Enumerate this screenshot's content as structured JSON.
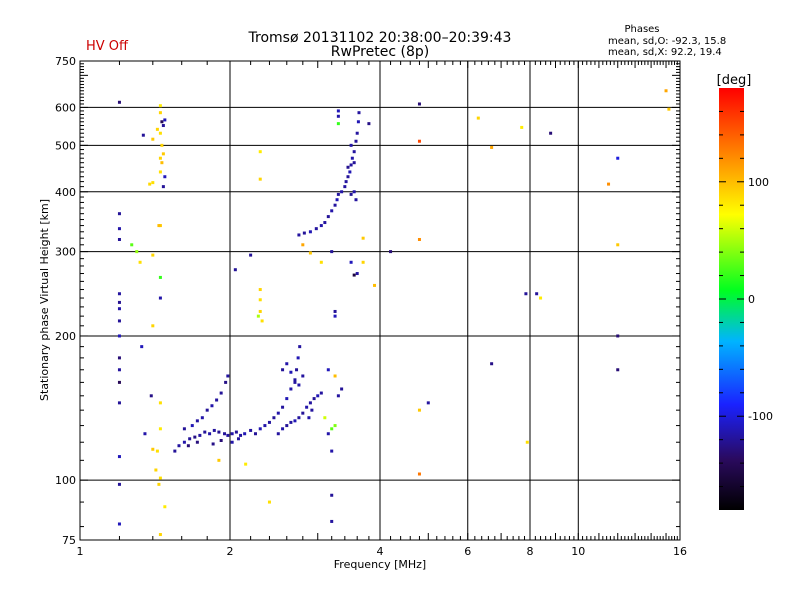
{
  "status": {
    "hv": "HV Off",
    "hv_color": "#cc0000"
  },
  "header": {
    "title_line1": "Tromsø 20131102 20:38:00–20:39:43",
    "title_line2": "RwPretec (8p)",
    "stats_title": "Phases",
    "stats_o": "mean, sd,O:  -92.3, 15.8",
    "stats_x": "mean, sd,X:  92.2, 19.4"
  },
  "colorbar": {
    "label": "[deg]",
    "ticks": [
      {
        "value": 100,
        "label": "100"
      },
      {
        "value": 0,
        "label": "0"
      },
      {
        "value": -100,
        "label": "-100"
      }
    ],
    "range": [
      -180,
      180
    ]
  },
  "chart_data": {
    "type": "scatter",
    "title": "Tromsø 20131102 20:38:00–20:39:43",
    "subtitle": "RwPretec (8p)",
    "xlabel": "Frequency [MHz]",
    "ylabel": "Stationary phase Virtual Height [km]",
    "xscale": "log",
    "yscale": "log",
    "xlim": [
      1,
      16
    ],
    "ylim": [
      75,
      750
    ],
    "grid": true,
    "xticks_major": [
      1,
      2,
      4,
      8,
      16
    ],
    "xtick_labels": [
      {
        "v": 1,
        "l": "1"
      },
      {
        "v": 2,
        "l": "2"
      },
      {
        "v": 4,
        "l": "4"
      },
      {
        "v": 6,
        "l": "6"
      },
      {
        "v": 8,
        "l": "8"
      },
      {
        "v": 10,
        "l": "10"
      },
      {
        "v": 16,
        "l": "16"
      }
    ],
    "xgrid": [
      2,
      4,
      6,
      8,
      10
    ],
    "ygrid": [
      100,
      200,
      300,
      400,
      500,
      600
    ],
    "ytick_labels": [
      75,
      100,
      200,
      300,
      400,
      500,
      600,
      750
    ],
    "color_scale": "phase in degrees (-180 to 180)",
    "points": [
      [
        1.2,
        615,
        -130
      ],
      [
        1.2,
        360,
        -120
      ],
      [
        1.2,
        335,
        -115
      ],
      [
        1.2,
        318,
        -120
      ],
      [
        1.2,
        245,
        -118
      ],
      [
        1.2,
        235,
        -122
      ],
      [
        1.2,
        228,
        -115
      ],
      [
        1.2,
        215,
        -120
      ],
      [
        1.2,
        200,
        -110
      ],
      [
        1.2,
        180,
        -130
      ],
      [
        1.2,
        170,
        -118
      ],
      [
        1.2,
        160,
        -140
      ],
      [
        1.2,
        145,
        -120
      ],
      [
        1.2,
        112,
        -110
      ],
      [
        1.2,
        98,
        -120
      ],
      [
        1.2,
        81,
        -110
      ],
      [
        1.34,
        525,
        -120
      ],
      [
        1.4,
        515,
        95
      ],
      [
        1.43,
        540,
        90
      ],
      [
        1.45,
        605,
        80
      ],
      [
        1.45,
        585,
        90
      ],
      [
        1.46,
        560,
        -140
      ],
      [
        1.47,
        550,
        -120
      ],
      [
        1.48,
        565,
        -110
      ],
      [
        1.45,
        530,
        85
      ],
      [
        1.46,
        500,
        90
      ],
      [
        1.47,
        480,
        95
      ],
      [
        1.46,
        460,
        100
      ],
      [
        1.45,
        440,
        85
      ],
      [
        1.48,
        430,
        -110
      ],
      [
        1.47,
        410,
        -120
      ],
      [
        1.45,
        470,
        90
      ],
      [
        1.4,
        418,
        85
      ],
      [
        1.38,
        415,
        88
      ],
      [
        1.45,
        340,
        95
      ],
      [
        1.44,
        340,
        100
      ],
      [
        1.4,
        295,
        90
      ],
      [
        1.32,
        285,
        85
      ],
      [
        1.3,
        300,
        45
      ],
      [
        1.27,
        310,
        30
      ],
      [
        1.45,
        265,
        20
      ],
      [
        1.45,
        240,
        -115
      ],
      [
        1.4,
        210,
        90
      ],
      [
        1.33,
        190,
        -110
      ],
      [
        1.39,
        150,
        -125
      ],
      [
        1.45,
        145,
        85
      ],
      [
        1.45,
        128,
        80
      ],
      [
        1.43,
        115,
        85
      ],
      [
        1.42,
        105,
        90
      ],
      [
        1.45,
        101,
        85
      ],
      [
        1.44,
        98,
        90
      ],
      [
        1.48,
        88,
        80
      ],
      [
        1.45,
        77,
        90
      ],
      [
        1.35,
        125,
        -115
      ],
      [
        1.4,
        116,
        95
      ],
      [
        1.55,
        115,
        -120
      ],
      [
        1.58,
        118,
        -118
      ],
      [
        1.62,
        120,
        -115
      ],
      [
        1.66,
        122,
        -120
      ],
      [
        1.7,
        123,
        -125
      ],
      [
        1.74,
        124,
        -118
      ],
      [
        1.78,
        126,
        -120
      ],
      [
        1.82,
        125,
        -115
      ],
      [
        1.86,
        127,
        -118
      ],
      [
        1.9,
        126,
        -122
      ],
      [
        1.95,
        125,
        -120
      ],
      [
        1.98,
        124,
        -118
      ],
      [
        2.02,
        125,
        -115
      ],
      [
        2.06,
        126,
        -120
      ],
      [
        2.1,
        124,
        -118
      ],
      [
        1.62,
        128,
        -120
      ],
      [
        1.68,
        130,
        -112
      ],
      [
        1.72,
        133,
        -118
      ],
      [
        1.76,
        135,
        -115
      ],
      [
        1.8,
        140,
        -120
      ],
      [
        1.84,
        143,
        -115
      ],
      [
        1.88,
        147,
        -118
      ],
      [
        1.92,
        152,
        -120
      ],
      [
        1.96,
        160,
        -125
      ],
      [
        1.98,
        165,
        -118
      ],
      [
        1.65,
        118,
        -130
      ],
      [
        1.72,
        120,
        -128
      ],
      [
        1.85,
        119,
        -125
      ],
      [
        1.92,
        121,
        -130
      ],
      [
        2.02,
        120,
        -115
      ],
      [
        2.08,
        122,
        -118
      ],
      [
        2.14,
        125,
        -112
      ],
      [
        2.2,
        127,
        -118
      ],
      [
        2.25,
        125,
        -120
      ],
      [
        2.3,
        128,
        -112
      ],
      [
        2.35,
        130,
        -115
      ],
      [
        2.4,
        132,
        -118
      ],
      [
        2.45,
        135,
        -120
      ],
      [
        2.5,
        138,
        -115
      ],
      [
        2.55,
        142,
        -118
      ],
      [
        2.6,
        148,
        -112
      ],
      [
        2.65,
        155,
        -115
      ],
      [
        2.7,
        162,
        -118
      ],
      [
        2.72,
        170,
        -120
      ],
      [
        2.74,
        180,
        -112
      ],
      [
        2.76,
        190,
        -118
      ],
      [
        2.6,
        175,
        -115
      ],
      [
        2.55,
        170,
        -120
      ],
      [
        2.65,
        168,
        -112
      ],
      [
        2.7,
        160,
        -118
      ],
      [
        2.75,
        158,
        -115
      ],
      [
        2.8,
        165,
        -118
      ],
      [
        2.5,
        125,
        -118
      ],
      [
        2.55,
        128,
        -115
      ],
      [
        2.6,
        130,
        -120
      ],
      [
        2.65,
        132,
        -118
      ],
      [
        2.7,
        133,
        -112
      ],
      [
        2.75,
        135,
        -118
      ],
      [
        2.8,
        138,
        -120
      ],
      [
        2.85,
        142,
        -115
      ],
      [
        2.9,
        145,
        -118
      ],
      [
        2.95,
        148,
        -120
      ],
      [
        3.0,
        150,
        -112
      ],
      [
        3.05,
        152,
        -118
      ],
      [
        2.88,
        135,
        -115
      ],
      [
        2.92,
        140,
        -118
      ],
      [
        3.15,
        125,
        -115
      ],
      [
        3.2,
        128,
        30
      ],
      [
        3.25,
        130,
        40
      ],
      [
        3.1,
        135,
        60
      ],
      [
        3.3,
        150,
        -118
      ],
      [
        3.35,
        155,
        -120
      ],
      [
        3.15,
        170,
        -110
      ],
      [
        3.25,
        165,
        100
      ],
      [
        3.2,
        115,
        -115
      ],
      [
        3.2,
        93,
        -120
      ],
      [
        3.2,
        82,
        -118
      ],
      [
        3.25,
        225,
        -120
      ],
      [
        3.25,
        220,
        -110
      ],
      [
        2.75,
        325,
        -118
      ],
      [
        2.82,
        328,
        -120
      ],
      [
        2.9,
        330,
        -112
      ],
      [
        2.98,
        335,
        -118
      ],
      [
        3.05,
        340,
        -115
      ],
      [
        3.1,
        345,
        -118
      ],
      [
        3.15,
        355,
        -120
      ],
      [
        3.2,
        365,
        -115
      ],
      [
        3.25,
        375,
        -118
      ],
      [
        3.28,
        385,
        -112
      ],
      [
        3.3,
        395,
        -118
      ],
      [
        3.35,
        400,
        -115
      ],
      [
        3.4,
        410,
        -118
      ],
      [
        3.45,
        430,
        -120
      ],
      [
        3.48,
        440,
        -112
      ],
      [
        3.5,
        455,
        -118
      ],
      [
        3.52,
        470,
        -115
      ],
      [
        3.55,
        485,
        -118
      ],
      [
        3.58,
        510,
        -120
      ],
      [
        3.6,
        530,
        -118
      ],
      [
        3.62,
        560,
        -112
      ],
      [
        3.63,
        585,
        -118
      ],
      [
        3.55,
        400,
        -115
      ],
      [
        3.5,
        395,
        -120
      ],
      [
        3.58,
        385,
        -118
      ],
      [
        3.45,
        450,
        -122
      ],
      [
        3.42,
        420,
        -118
      ],
      [
        3.5,
        500,
        -115
      ],
      [
        3.55,
        460,
        -120
      ],
      [
        3.3,
        575,
        -115
      ],
      [
        3.3,
        555,
        20
      ],
      [
        3.3,
        590,
        -110
      ],
      [
        3.2,
        300,
        -120
      ],
      [
        3.5,
        285,
        -110
      ],
      [
        3.6,
        270,
        -118
      ],
      [
        3.55,
        268,
        -150
      ],
      [
        2.3,
        485,
        80
      ],
      [
        2.3,
        425,
        90
      ],
      [
        2.3,
        250,
        90
      ],
      [
        2.3,
        238,
        85
      ],
      [
        2.3,
        225,
        90
      ],
      [
        2.32,
        215,
        85
      ],
      [
        2.28,
        220,
        50
      ],
      [
        2.2,
        295,
        -120
      ],
      [
        2.05,
        275,
        -120
      ],
      [
        2.8,
        310,
        110
      ],
      [
        2.9,
        298,
        95
      ],
      [
        3.05,
        285,
        85
      ],
      [
        3.8,
        555,
        -125
      ],
      [
        3.7,
        320,
        95
      ],
      [
        3.7,
        285,
        90
      ],
      [
        3.9,
        255,
        100
      ],
      [
        4.2,
        300,
        -130
      ],
      [
        4.8,
        610,
        -130
      ],
      [
        4.8,
        510,
        150
      ],
      [
        4.8,
        318,
        120
      ],
      [
        4.8,
        140,
        95
      ],
      [
        5.0,
        145,
        -118
      ],
      [
        4.8,
        103,
        130
      ],
      [
        6.3,
        570,
        90
      ],
      [
        6.7,
        495,
        110
      ],
      [
        6.7,
        175,
        -125
      ],
      [
        7.7,
        545,
        80
      ],
      [
        8.8,
        530,
        -130
      ],
      [
        7.85,
        245,
        -120
      ],
      [
        8.25,
        245,
        -120
      ],
      [
        8.4,
        240,
        80
      ],
      [
        7.9,
        120,
        85
      ],
      [
        11.5,
        415,
        120
      ],
      [
        12.0,
        470,
        -100
      ],
      [
        12.0,
        310,
        95
      ],
      [
        12.0,
        200,
        -130
      ],
      [
        12.0,
        170,
        -130
      ],
      [
        15.0,
        650,
        110
      ],
      [
        15.2,
        595,
        95
      ],
      [
        2.15,
        108,
        80
      ],
      [
        2.4,
        90,
        85
      ],
      [
        1.9,
        110,
        95
      ]
    ]
  }
}
